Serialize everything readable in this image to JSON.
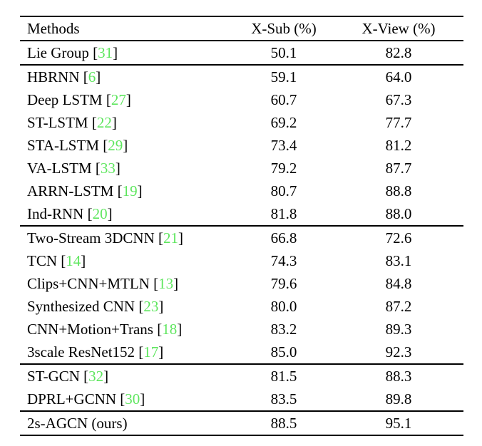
{
  "table": {
    "columns": [
      {
        "label": "Methods"
      },
      {
        "label": "X-Sub (%)"
      },
      {
        "label": "X-View (%)"
      }
    ],
    "groups": [
      {
        "rows": [
          {
            "method": "Lie Group",
            "cite": "31",
            "xsub": "50.1",
            "xview": "82.8"
          }
        ]
      },
      {
        "rows": [
          {
            "method": "HBRNN",
            "cite": "6",
            "xsub": "59.1",
            "xview": "64.0"
          },
          {
            "method": "Deep LSTM",
            "cite": "27",
            "xsub": "60.7",
            "xview": "67.3"
          },
          {
            "method": "ST-LSTM",
            "cite": "22",
            "xsub": "69.2",
            "xview": "77.7"
          },
          {
            "method": "STA-LSTM",
            "cite": "29",
            "xsub": "73.4",
            "xview": "81.2"
          },
          {
            "method": "VA-LSTM",
            "cite": "33",
            "xsub": "79.2",
            "xview": "87.7"
          },
          {
            "method": "ARRN-LSTM",
            "cite": "19",
            "xsub": "80.7",
            "xview": "88.8"
          },
          {
            "method": "Ind-RNN",
            "cite": "20",
            "xsub": "81.8",
            "xview": "88.0"
          }
        ]
      },
      {
        "rows": [
          {
            "method": "Two-Stream 3DCNN",
            "cite": "21",
            "xsub": "66.8",
            "xview": "72.6"
          },
          {
            "method": "TCN",
            "cite": "14",
            "xsub": "74.3",
            "xview": "83.1"
          },
          {
            "method": "Clips+CNN+MTLN",
            "cite": "13",
            "xsub": "79.6",
            "xview": "84.8"
          },
          {
            "method": "Synthesized CNN",
            "cite": "23",
            "xsub": "80.0",
            "xview": "87.2"
          },
          {
            "method": "CNN+Motion+Trans",
            "cite": "18",
            "xsub": "83.2",
            "xview": "89.3"
          },
          {
            "method": "3scale ResNet152",
            "cite": "17",
            "xsub": "85.0",
            "xview": "92.3"
          }
        ]
      },
      {
        "rows": [
          {
            "method": "ST-GCN",
            "cite": "32",
            "xsub": "81.5",
            "xview": "88.3"
          },
          {
            "method": "DPRL+GCNN",
            "cite": "30",
            "xsub": "83.5",
            "xview": "89.8"
          }
        ]
      },
      {
        "rows": [
          {
            "method": "2s-AGCN (ours)",
            "cite": null,
            "xsub": "88.5",
            "xview": "95.1"
          }
        ]
      }
    ]
  },
  "colors": {
    "citation_green": "#5ee65e",
    "rule": "#000000",
    "background": "#ffffff",
    "text": "#000000"
  }
}
